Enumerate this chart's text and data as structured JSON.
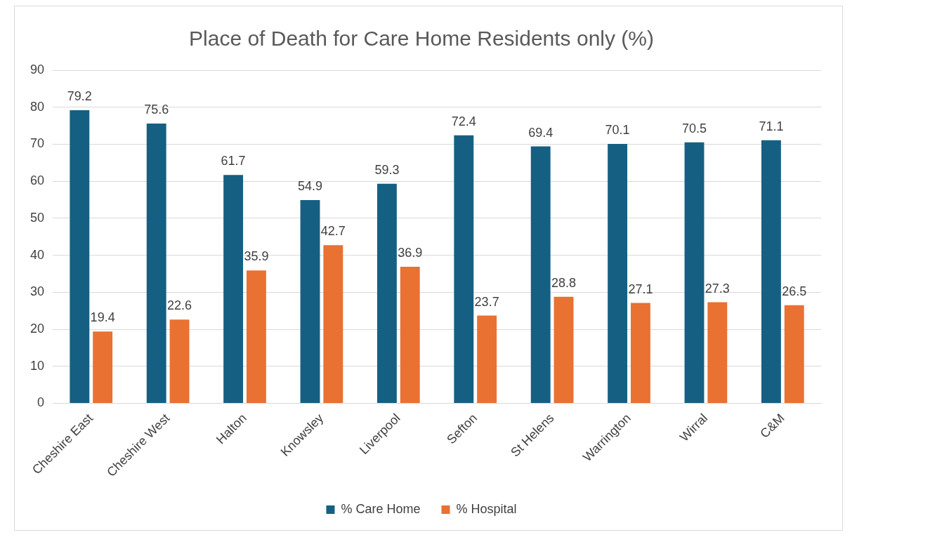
{
  "chart_data": {
    "type": "bar",
    "title": "Place of Death for Care Home Residents only (%)",
    "categories": [
      "Cheshire East",
      "Cheshire West",
      "Halton",
      "Knowsley",
      "Liverpool",
      "Sefton",
      "St Helens",
      "Warrington",
      "Wirral",
      "C&M"
    ],
    "series": [
      {
        "name": "% Care Home",
        "color": "#156082",
        "values": [
          79.2,
          75.6,
          61.7,
          54.9,
          59.3,
          72.4,
          69.4,
          70.1,
          70.5,
          71.1
        ]
      },
      {
        "name": "% Hospital",
        "color": "#e97132",
        "values": [
          19.4,
          22.6,
          35.9,
          42.7,
          36.9,
          23.7,
          28.8,
          27.1,
          27.3,
          26.5
        ]
      }
    ],
    "ylim": [
      0,
      90
    ],
    "yticks": [
      0,
      10,
      20,
      30,
      40,
      50,
      60,
      70,
      80,
      90
    ],
    "grid": "y",
    "legend": "bottom",
    "data_labels": true
  }
}
